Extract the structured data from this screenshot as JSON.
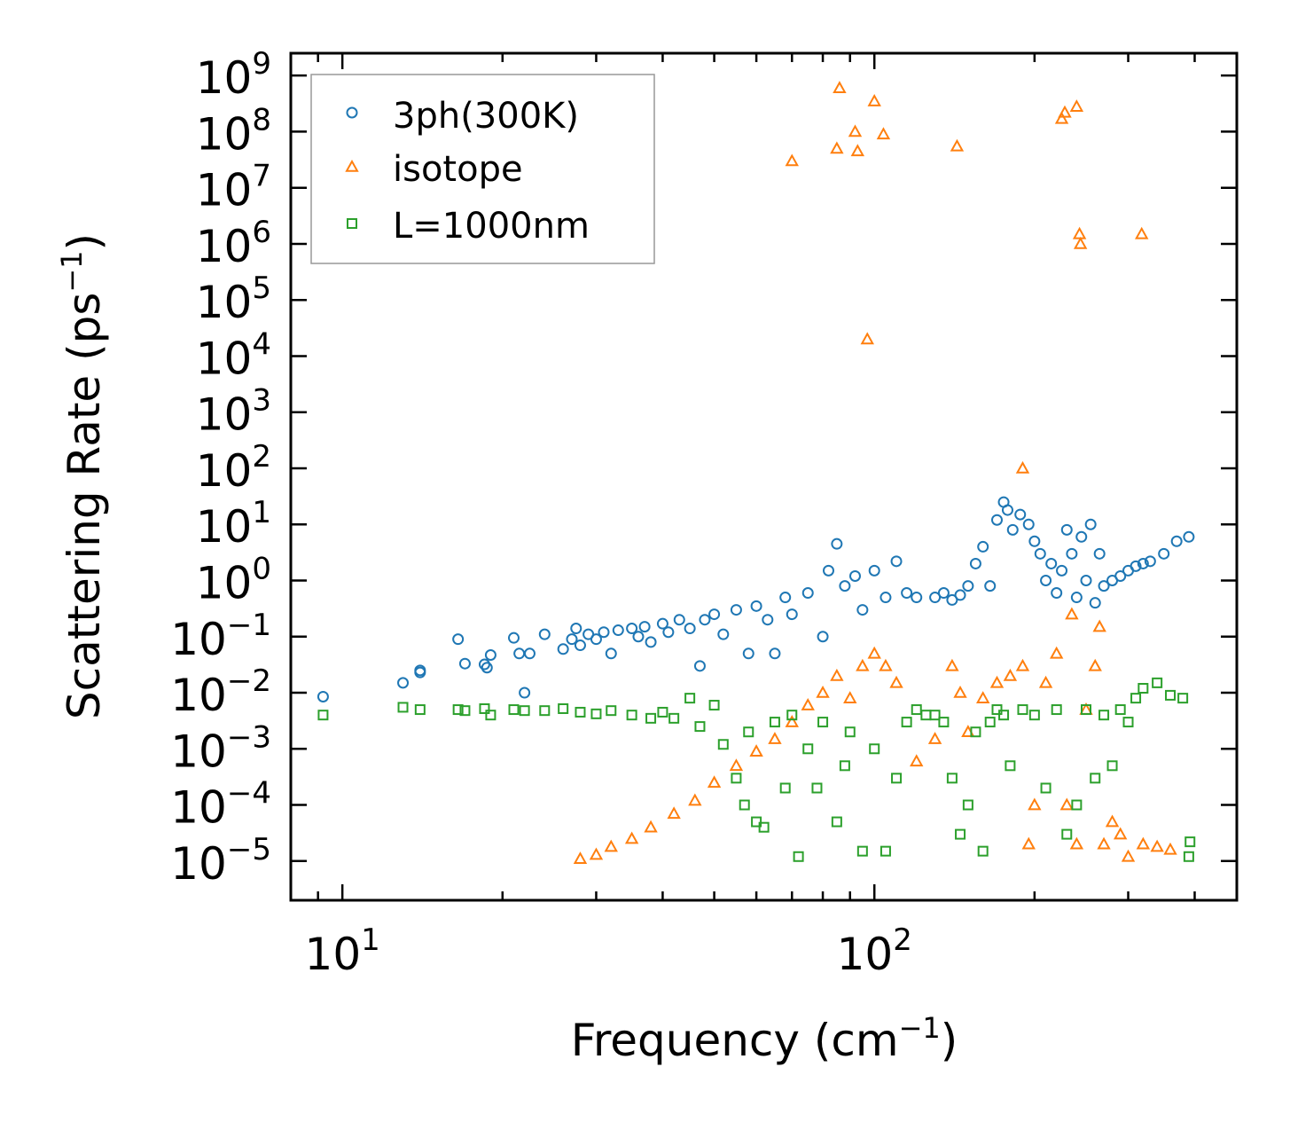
{
  "chart_data": {
    "type": "scatter",
    "title": "",
    "xlabel": "Frequency (cm",
    "xlabel_sup": "−1",
    "xlabel_suffix": ")",
    "ylabel": "Scattering Rate (ps",
    "ylabel_sup": "−1",
    "ylabel_suffix": ")",
    "xscale": "log",
    "yscale": "log",
    "xlim": [
      8,
      480
    ],
    "ylim": [
      2e-06,
      2500000000.0
    ],
    "legend_position": "top-left",
    "x_ticks": [
      {
        "value": 10,
        "base": "10",
        "exp": "1"
      },
      {
        "value": 100,
        "base": "10",
        "exp": "2"
      }
    ],
    "y_ticks": [
      {
        "value": 1e-05,
        "base": "10",
        "exp": "−5"
      },
      {
        "value": 0.0001,
        "base": "10",
        "exp": "−4"
      },
      {
        "value": 0.001,
        "base": "10",
        "exp": "−3"
      },
      {
        "value": 0.01,
        "base": "10",
        "exp": "−2"
      },
      {
        "value": 0.1,
        "base": "10",
        "exp": "−1"
      },
      {
        "value": 1.0,
        "base": "10",
        "exp": "0"
      },
      {
        "value": 10.0,
        "base": "10",
        "exp": "1"
      },
      {
        "value": 100.0,
        "base": "10",
        "exp": "2"
      },
      {
        "value": 1000.0,
        "base": "10",
        "exp": "3"
      },
      {
        "value": 10000.0,
        "base": "10",
        "exp": "4"
      },
      {
        "value": 100000.0,
        "base": "10",
        "exp": "5"
      },
      {
        "value": 1000000.0,
        "base": "10",
        "exp": "6"
      },
      {
        "value": 10000000.0,
        "base": "10",
        "exp": "7"
      },
      {
        "value": 100000000.0,
        "base": "10",
        "exp": "8"
      },
      {
        "value": 1000000000.0,
        "base": "10",
        "exp": "9"
      }
    ],
    "series": [
      {
        "name": "3ph(300K)",
        "marker": "circle",
        "color": "#1f77b4",
        "points": [
          [
            9.2,
            0.0085
          ],
          [
            13,
            0.015
          ],
          [
            14,
            0.023
          ],
          [
            14,
            0.025
          ],
          [
            16.5,
            0.09
          ],
          [
            17,
            0.033
          ],
          [
            18.5,
            0.032
          ],
          [
            18.7,
            0.028
          ],
          [
            19,
            0.047
          ],
          [
            21,
            0.095
          ],
          [
            21.5,
            0.05
          ],
          [
            22,
            0.01
          ],
          [
            22.5,
            0.05
          ],
          [
            24,
            0.11
          ],
          [
            26,
            0.06
          ],
          [
            27,
            0.09
          ],
          [
            27.5,
            0.14
          ],
          [
            28,
            0.07
          ],
          [
            29,
            0.11
          ],
          [
            30,
            0.09
          ],
          [
            31,
            0.12
          ],
          [
            32,
            0.05
          ],
          [
            33,
            0.13
          ],
          [
            35,
            0.14
          ],
          [
            36,
            0.1
          ],
          [
            37,
            0.15
          ],
          [
            38,
            0.08
          ],
          [
            40,
            0.17
          ],
          [
            41,
            0.12
          ],
          [
            43,
            0.2
          ],
          [
            45,
            0.14
          ],
          [
            47,
            0.03
          ],
          [
            48,
            0.2
          ],
          [
            50,
            0.25
          ],
          [
            52,
            0.11
          ],
          [
            55,
            0.3
          ],
          [
            58,
            0.05
          ],
          [
            60,
            0.35
          ],
          [
            63,
            0.2
          ],
          [
            65,
            0.05
          ],
          [
            68,
            0.5
          ],
          [
            70,
            0.25
          ],
          [
            75,
            0.6
          ],
          [
            80,
            0.1
          ],
          [
            82,
            1.5
          ],
          [
            85,
            4.5
          ],
          [
            88,
            0.8
          ],
          [
            92,
            1.2
          ],
          [
            95,
            0.3
          ],
          [
            100,
            1.5
          ],
          [
            105,
            0.5
          ],
          [
            110,
            2.2
          ],
          [
            115,
            0.6
          ],
          [
            120,
            0.5
          ],
          [
            130,
            0.5
          ],
          [
            135,
            0.6
          ],
          [
            140,
            0.45
          ],
          [
            145,
            0.55
          ],
          [
            150,
            0.8
          ],
          [
            155,
            2
          ],
          [
            160,
            4
          ],
          [
            165,
            0.8
          ],
          [
            170,
            12
          ],
          [
            175,
            25
          ],
          [
            178,
            18
          ],
          [
            182,
            8
          ],
          [
            188,
            15
          ],
          [
            195,
            10
          ],
          [
            200,
            5
          ],
          [
            205,
            3
          ],
          [
            210,
            1
          ],
          [
            215,
            2
          ],
          [
            220,
            0.6
          ],
          [
            225,
            1.5
          ],
          [
            230,
            8
          ],
          [
            235,
            3
          ],
          [
            240,
            0.5
          ],
          [
            245,
            6
          ],
          [
            250,
            1
          ],
          [
            255,
            10
          ],
          [
            260,
            0.4
          ],
          [
            265,
            3
          ],
          [
            270,
            0.8
          ],
          [
            280,
            1
          ],
          [
            290,
            1.2
          ],
          [
            300,
            1.5
          ],
          [
            310,
            1.8
          ],
          [
            320,
            2
          ],
          [
            330,
            2.2
          ],
          [
            350,
            3
          ],
          [
            370,
            5
          ],
          [
            390,
            6
          ]
        ]
      },
      {
        "name": "isotope",
        "marker": "triangle",
        "color": "#ff7f0e",
        "points": [
          [
            28,
            1.1e-05
          ],
          [
            30,
            1.3e-05
          ],
          [
            32,
            1.8e-05
          ],
          [
            35,
            2.5e-05
          ],
          [
            38,
            4e-05
          ],
          [
            42,
            7e-05
          ],
          [
            46,
            0.00012
          ],
          [
            50,
            0.00025
          ],
          [
            55,
            0.0005
          ],
          [
            60,
            0.0009
          ],
          [
            65,
            0.0015
          ],
          [
            70,
            0.003
          ],
          [
            75,
            0.006
          ],
          [
            80,
            0.01
          ],
          [
            85,
            0.02
          ],
          [
            90,
            0.008
          ],
          [
            95,
            0.03
          ],
          [
            100,
            0.05
          ],
          [
            105,
            0.03
          ],
          [
            110,
            0.015
          ],
          [
            120,
            0.0006
          ],
          [
            130,
            0.0015
          ],
          [
            140,
            0.03
          ],
          [
            145,
            0.01
          ],
          [
            150,
            0.002
          ],
          [
            160,
            0.008
          ],
          [
            170,
            0.015
          ],
          [
            180,
            0.02
          ],
          [
            190,
            0.03
          ],
          [
            195,
            2e-05
          ],
          [
            200,
            0.0001
          ],
          [
            210,
            0.015
          ],
          [
            220,
            0.05
          ],
          [
            230,
            0.0001
          ],
          [
            240,
            2e-05
          ],
          [
            250,
            0.005
          ],
          [
            260,
            0.03
          ],
          [
            265,
            0.15
          ],
          [
            270,
            2e-05
          ],
          [
            280,
            5e-05
          ],
          [
            290,
            3e-05
          ],
          [
            300,
            1.2e-05
          ],
          [
            320,
            2e-05
          ],
          [
            340,
            1.8e-05
          ],
          [
            360,
            1.6e-05
          ],
          [
            70,
            30000000.0
          ],
          [
            85,
            50000000.0
          ],
          [
            86,
            600000000.0
          ],
          [
            92,
            100000000.0
          ],
          [
            93,
            45000000.0
          ],
          [
            97,
            20000.0
          ],
          [
            100,
            350000000.0
          ],
          [
            104,
            90000000.0
          ],
          [
            143,
            55000000.0
          ],
          [
            190,
            100
          ],
          [
            225,
            170000000.0
          ],
          [
            228,
            220000000.0
          ],
          [
            235,
            0.25
          ],
          [
            240,
            280000000.0
          ],
          [
            243,
            1500000.0
          ],
          [
            244,
            1000000.0
          ],
          [
            318,
            1500000.0
          ]
        ]
      },
      {
        "name": "L=1000nm",
        "marker": "square",
        "color": "#2ca02c",
        "points": [
          [
            9.2,
            0.004
          ],
          [
            13,
            0.0055
          ],
          [
            14,
            0.005
          ],
          [
            16.5,
            0.005
          ],
          [
            17,
            0.0048
          ],
          [
            18.5,
            0.0052
          ],
          [
            19,
            0.004
          ],
          [
            21,
            0.005
          ],
          [
            22,
            0.0048
          ],
          [
            24,
            0.0048
          ],
          [
            26,
            0.0052
          ],
          [
            28,
            0.0045
          ],
          [
            30,
            0.0042
          ],
          [
            32,
            0.0048
          ],
          [
            35,
            0.004
          ],
          [
            38,
            0.0035
          ],
          [
            40,
            0.0045
          ],
          [
            42,
            0.0035
          ],
          [
            45,
            0.008
          ],
          [
            47,
            0.0025
          ],
          [
            50,
            0.006
          ],
          [
            52,
            0.0012
          ],
          [
            55,
            0.0003
          ],
          [
            57,
            0.0001
          ],
          [
            58,
            0.002
          ],
          [
            60,
            5e-05
          ],
          [
            62,
            4e-05
          ],
          [
            65,
            0.003
          ],
          [
            68,
            0.0002
          ],
          [
            70,
            0.004
          ],
          [
            72,
            1.2e-05
          ],
          [
            75,
            0.001
          ],
          [
            78,
            0.0002
          ],
          [
            80,
            0.003
          ],
          [
            85,
            5e-05
          ],
          [
            88,
            0.0005
          ],
          [
            90,
            0.002
          ],
          [
            95,
            1.5e-05
          ],
          [
            100,
            0.001
          ],
          [
            105,
            1.5e-05
          ],
          [
            110,
            0.0003
          ],
          [
            115,
            0.003
          ],
          [
            120,
            0.005
          ],
          [
            125,
            0.004
          ],
          [
            130,
            0.004
          ],
          [
            135,
            0.003
          ],
          [
            140,
            0.0003
          ],
          [
            145,
            3e-05
          ],
          [
            150,
            0.0001
          ],
          [
            155,
            0.002
          ],
          [
            160,
            1.5e-05
          ],
          [
            165,
            0.003
          ],
          [
            170,
            0.005
          ],
          [
            175,
            0.004
          ],
          [
            180,
            0.0005
          ],
          [
            190,
            0.005
          ],
          [
            200,
            0.004
          ],
          [
            210,
            0.0002
          ],
          [
            220,
            0.005
          ],
          [
            230,
            3e-05
          ],
          [
            240,
            0.0001
          ],
          [
            250,
            0.005
          ],
          [
            260,
            0.0003
          ],
          [
            270,
            0.004
          ],
          [
            280,
            0.0005
          ],
          [
            290,
            0.005
          ],
          [
            300,
            0.003
          ],
          [
            310,
            0.008
          ],
          [
            320,
            0.012
          ],
          [
            340,
            0.015
          ],
          [
            360,
            0.009
          ],
          [
            380,
            0.008
          ],
          [
            390,
            1.2e-05
          ],
          [
            392,
            2.2e-05
          ]
        ]
      }
    ]
  }
}
